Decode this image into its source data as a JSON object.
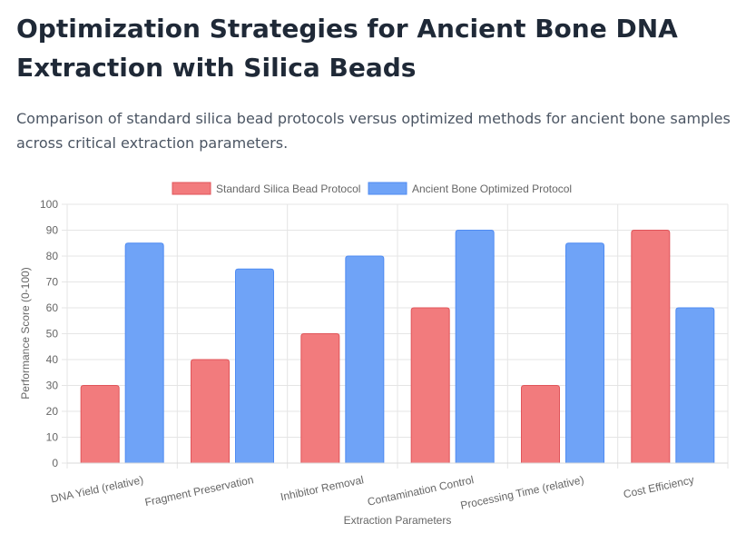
{
  "page": {
    "title": "Optimization Strategies for Ancient Bone DNA Extraction with Silica Beads",
    "description": "Comparison of standard silica bead protocols versus optimized methods for ancient bone samples across critical extraction parameters."
  },
  "chart_data": {
    "type": "bar",
    "categories": [
      "DNA Yield (relative)",
      "Fragment Preservation",
      "Inhibitor Removal",
      "Contamination Control",
      "Processing Time (relative)",
      "Cost Efficiency"
    ],
    "series": [
      {
        "name": "Standard Silica Bead Protocol",
        "values": [
          30,
          40,
          50,
          60,
          30,
          90
        ],
        "color": "#f27b7d",
        "border": "#e0555a"
      },
      {
        "name": "Ancient Bone Optimized Protocol",
        "values": [
          85,
          75,
          80,
          90,
          85,
          60
        ],
        "color": "#6fa3f7",
        "border": "#4f8bf2"
      }
    ],
    "xlabel": "Extraction Parameters",
    "ylabel": "Performance Score (0-100)",
    "ylim": [
      0,
      100
    ],
    "yticks": [
      0,
      10,
      20,
      30,
      40,
      50,
      60,
      70,
      80,
      90,
      100
    ],
    "grid": true,
    "legend": "top-center"
  }
}
